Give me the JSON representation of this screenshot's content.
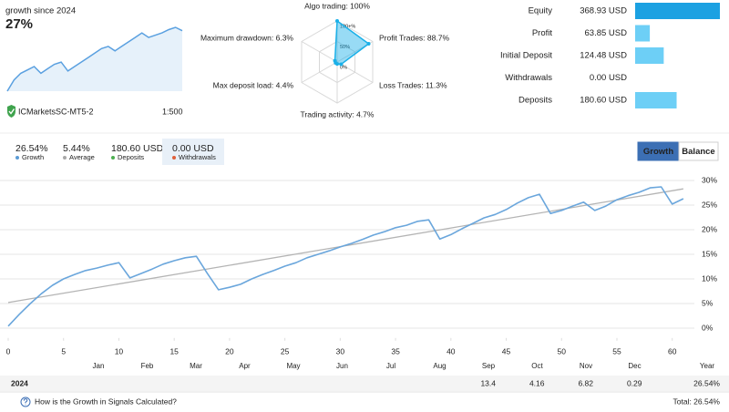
{
  "header": {
    "caption": "growth since 2024",
    "growth": "27%",
    "server": "ICMarketsSC-MT5-2",
    "leverage": "1:500"
  },
  "stats": [
    {
      "value": "26.54%",
      "label": "Growth",
      "color": "#5b9bd5"
    },
    {
      "value": "5.44%",
      "label": "Average",
      "color": "#a8a8a8"
    },
    {
      "value": "180.60 USD",
      "label": "Deposits",
      "color": "#4caf50"
    },
    {
      "value": "0.00 USD",
      "label": "Withdrawals",
      "color": "#e0603a",
      "selected": true
    }
  ],
  "tabs": {
    "items": [
      "Growth",
      "Balance"
    ],
    "active": 0
  },
  "chart_data": [
    {
      "type": "area",
      "values": [
        0,
        5,
        8,
        9.5,
        11,
        8,
        10,
        12,
        13,
        9,
        11,
        13,
        15,
        17,
        19,
        20,
        18,
        20,
        22,
        24,
        26,
        24,
        25,
        26,
        27.5,
        28.5,
        27
      ],
      "color": "#5aa0e0"
    },
    {
      "type": "radar",
      "categories": [
        "Algo trading: 100%",
        "Profit Trades: 88.7%",
        "Loss Trades: 11.3%",
        "Trading activity: 4.7%",
        "Max deposit load: 4.4%",
        "Maximum drawdown: 6.3%"
      ],
      "values": [
        100,
        88.7,
        11.3,
        4.7,
        4.4,
        6.3
      ],
      "rlim": [
        0,
        100
      ],
      "rticks": [
        {
          "value": 100,
          "label": "100+%"
        },
        {
          "value": 50,
          "label": "50%"
        },
        {
          "value": 0,
          "label": "0%"
        }
      ],
      "color": "#1ab0e8"
    },
    {
      "type": "hbar",
      "categories": [
        "Equity",
        "Profit",
        "Initial Deposit",
        "Withdrawals",
        "Deposits"
      ],
      "values": [
        368.93,
        63.85,
        124.48,
        0,
        180.6
      ],
      "value_labels": [
        "368.93 USD",
        "63.85 USD",
        "124.48 USD",
        "0.00 USD",
        "180.60 USD"
      ],
      "colors": [
        "#1ba1e2",
        "#6dcff6",
        "#6dcff6",
        "#6dcff6",
        "#6dcff6"
      ]
    },
    {
      "type": "line",
      "x": [
        0,
        1,
        2,
        3,
        4,
        5,
        6,
        7,
        8,
        9,
        10,
        11,
        12,
        13,
        14,
        15,
        16,
        17,
        18,
        19,
        20,
        21,
        22,
        23,
        24,
        25,
        26,
        27,
        28,
        29,
        30,
        31,
        32,
        33,
        34,
        35,
        36,
        37,
        38,
        39,
        40,
        41,
        42,
        43,
        44,
        45,
        46,
        47,
        48,
        49,
        50,
        51,
        52,
        53,
        54,
        55,
        56,
        57,
        58,
        59,
        60,
        61
      ],
      "series": [
        {
          "color": "#6aa6dc",
          "values": [
            0.4,
            2.8,
            5.0,
            7.0,
            8.7,
            10.0,
            10.9,
            11.7,
            12.2,
            12.8,
            13.3,
            10.2,
            11.1,
            12.0,
            13.0,
            13.7,
            14.3,
            14.6,
            11.1,
            7.8,
            8.3,
            8.9,
            10.0,
            10.9,
            11.7,
            12.6,
            13.3,
            14.3,
            15.0,
            15.7,
            16.5,
            17.2,
            18.0,
            18.9,
            19.6,
            20.4,
            20.9,
            21.7,
            22.0,
            18.1,
            19.0,
            20.2,
            21.3,
            22.4,
            23.1,
            24.1,
            25.4,
            26.5,
            27.2,
            23.3,
            23.9,
            24.8,
            25.6,
            23.9,
            24.8,
            26.1,
            26.9,
            27.6,
            28.5,
            28.7,
            25.2,
            26.3
          ]
        }
      ],
      "trend": {
        "x": [
          0,
          61
        ],
        "values": [
          5.2,
          28.3
        ],
        "color": "#b4b4b4"
      },
      "xlim": [
        0,
        62
      ],
      "ylim": [
        -2,
        32
      ],
      "xticks": [
        0,
        5,
        10,
        15,
        20,
        25,
        30,
        35,
        40,
        45,
        50,
        55,
        60
      ],
      "yticks": [
        {
          "value": 0,
          "label": "0%"
        },
        {
          "value": 5,
          "label": "5%"
        },
        {
          "value": 10,
          "label": "10%"
        },
        {
          "value": 15,
          "label": "15%"
        },
        {
          "value": 20,
          "label": "20%"
        },
        {
          "value": 25,
          "label": "25%"
        },
        {
          "value": 30,
          "label": "30%"
        }
      ],
      "grid": true
    }
  ],
  "month_table": {
    "columns": [
      "Jan",
      "Feb",
      "Mar",
      "Apr",
      "May",
      "Jun",
      "Jul",
      "Aug",
      "Sep",
      "Oct",
      "Nov",
      "Dec",
      "Year"
    ],
    "rows": [
      {
        "label": "2024",
        "cells": [
          null,
          null,
          null,
          null,
          null,
          null,
          null,
          null,
          "13.4",
          "4.16",
          "6.82",
          "0.29",
          "26.54%"
        ]
      }
    ]
  },
  "footer": {
    "link": "How is the Growth in Signals Calculated?",
    "total": "Total: 26.54%"
  }
}
